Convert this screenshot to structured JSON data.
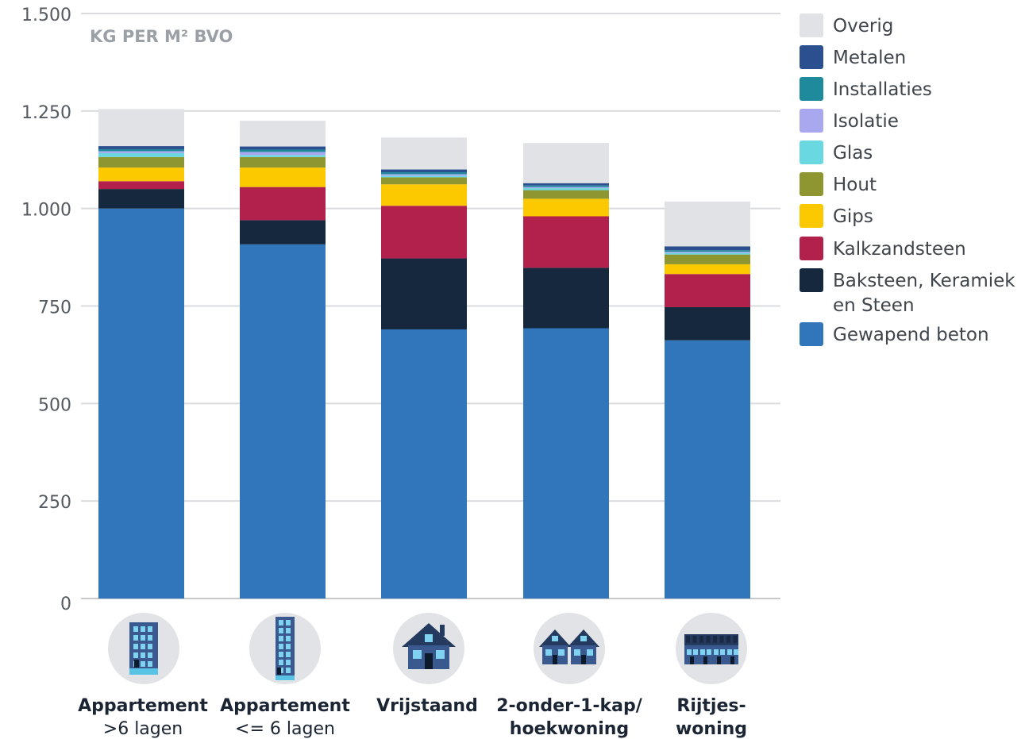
{
  "chart_data": {
    "type": "bar",
    "stacked": true,
    "unit_label": "KG PER M² BVO",
    "title": "",
    "xlabel": "",
    "ylabel": "",
    "ylim": [
      0,
      1500
    ],
    "yticks": [
      0,
      250,
      500,
      750,
      1000,
      1250,
      1500
    ],
    "ytick_labels": [
      "0",
      "250",
      "500",
      "750",
      "1.000",
      "1.250",
      "1.500"
    ],
    "grid": true,
    "legend_position": "right",
    "categories": [
      {
        "line1": "Appartement",
        "line2": ">6 lagen",
        "icon": "apartment-high-rise-icon"
      },
      {
        "line1": "Appartement",
        "line2": "<= 6 lagen",
        "icon": "apartment-low-rise-icon"
      },
      {
        "line1": "Vrijstaand",
        "line2": "",
        "icon": "detached-house-icon"
      },
      {
        "line1": "2-onder-1-kap/",
        "line2": "hoekwoning",
        "icon": "semi-detached-house-icon"
      },
      {
        "line1": "Rijtjes-",
        "line2": "woning",
        "icon": "terraced-house-icon"
      }
    ],
    "series": [
      {
        "name": "Gewapend beton",
        "color": "#3176bb",
        "values": [
          1000,
          908,
          690,
          693,
          662
        ]
      },
      {
        "name": "Baksteen, Keramiek en Steen",
        "color": "#15283e",
        "values": [
          50,
          62,
          182,
          155,
          85
        ]
      },
      {
        "name": "Kalkzandsteen",
        "color": "#b2214c",
        "values": [
          20,
          85,
          135,
          132,
          85
        ]
      },
      {
        "name": "Gips",
        "color": "#fcc800",
        "values": [
          35,
          50,
          55,
          45,
          25
        ]
      },
      {
        "name": "Hout",
        "color": "#8e9631",
        "values": [
          27,
          27,
          18,
          22,
          25
        ]
      },
      {
        "name": "Glas",
        "color": "#69d8e0",
        "values": [
          10,
          5,
          4,
          5,
          4
        ]
      },
      {
        "name": "Isolatie",
        "color": "#a9a7ee",
        "values": [
          5,
          8,
          4,
          3,
          3
        ]
      },
      {
        "name": "Installaties",
        "color": "#1e8a9c",
        "values": [
          5,
          6,
          5,
          4,
          4
        ]
      },
      {
        "name": "Metalen",
        "color": "#2b4f8f",
        "values": [
          8,
          8,
          7,
          6,
          10
        ]
      },
      {
        "name": "Overig",
        "color": "#e1e2e6",
        "values": [
          95,
          66,
          82,
          103,
          115
        ]
      }
    ],
    "legend_order": [
      {
        "line1": "Overig",
        "line2": ""
      },
      {
        "line1": "Metalen",
        "line2": ""
      },
      {
        "line1": "Installaties",
        "line2": ""
      },
      {
        "line1": "Isolatie",
        "line2": ""
      },
      {
        "line1": "Glas",
        "line2": ""
      },
      {
        "line1": "Hout",
        "line2": ""
      },
      {
        "line1": "Gips",
        "line2": ""
      },
      {
        "line1": "Kalkzandsteen",
        "line2": ""
      },
      {
        "line1": "Baksteen, Keramiek",
        "line2": "en Steen"
      },
      {
        "line1": "Gewapend beton",
        "line2": ""
      }
    ]
  }
}
